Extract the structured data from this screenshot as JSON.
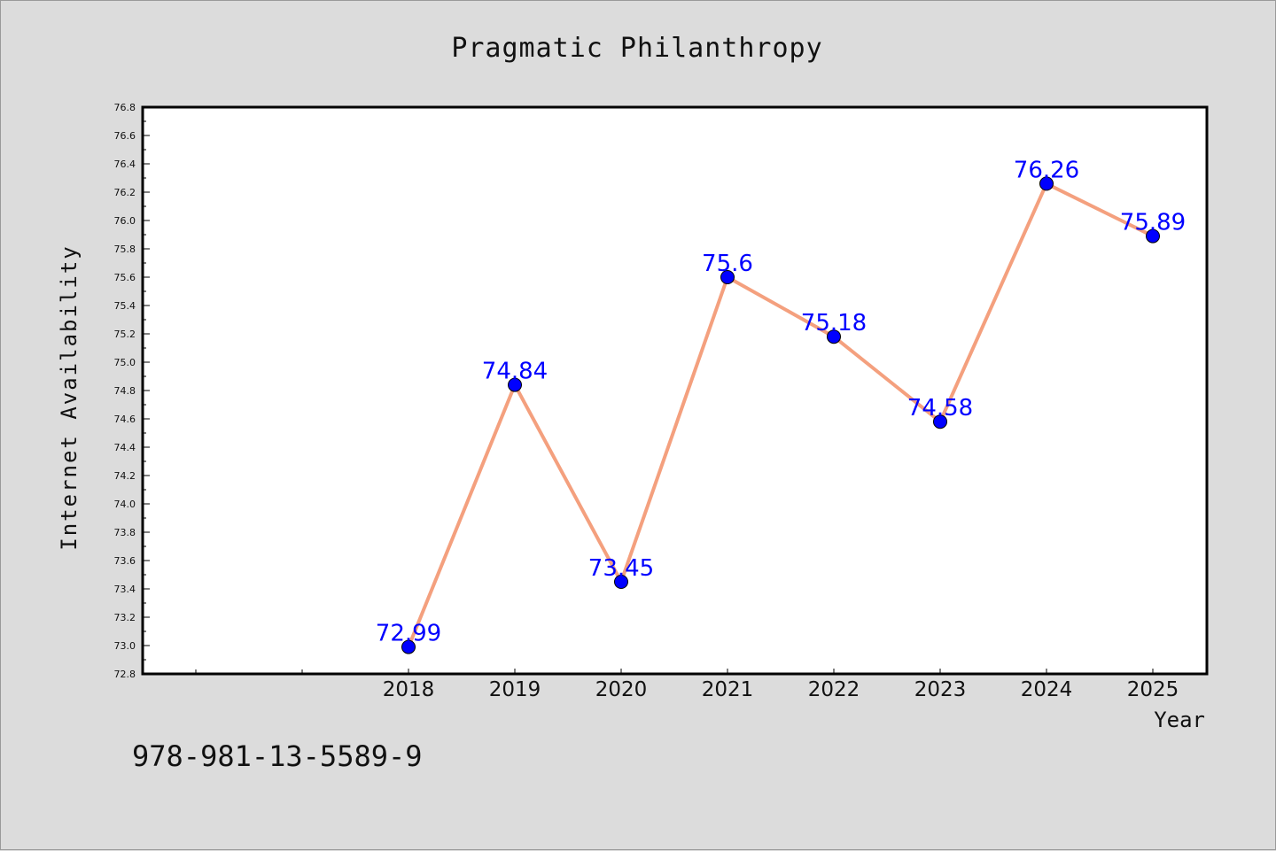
{
  "chart_data": {
    "type": "line",
    "title": "Pragmatic Philanthropy",
    "xlabel": "Year",
    "ylabel": "Internet Availability",
    "x": [
      "2018",
      "2019",
      "2020",
      "2021",
      "2022",
      "2023",
      "2024",
      "2025"
    ],
    "series": [
      {
        "values": [
          72.99,
          74.84,
          73.45,
          75.6,
          75.18,
          74.58,
          76.26,
          75.89
        ],
        "data_labels": [
          "72.99",
          "74.84",
          "73.45",
          "75.6",
          "75.18",
          "74.58",
          "76.26",
          "75.89"
        ],
        "line_color": "#f4a07e",
        "marker_color": "#0000ff",
        "label_color": "#0000ff"
      }
    ],
    "ylim": [
      72.8,
      76.8
    ],
    "yticks": [
      "72.8",
      "73.0",
      "73.2",
      "73.4",
      "73.6",
      "73.8",
      "74.0",
      "74.2",
      "74.4",
      "74.6",
      "74.8",
      "75.0",
      "75.2",
      "75.4",
      "75.6",
      "75.8",
      "76.0",
      "76.2",
      "76.4",
      "76.6",
      "76.8"
    ],
    "grid": false,
    "legend": "none"
  },
  "footer": {
    "isbn": "978-981-13-5589-9"
  },
  "colors": {
    "background": "#dcdcdc",
    "plot_area": "#ffffff",
    "text": "#111111"
  }
}
